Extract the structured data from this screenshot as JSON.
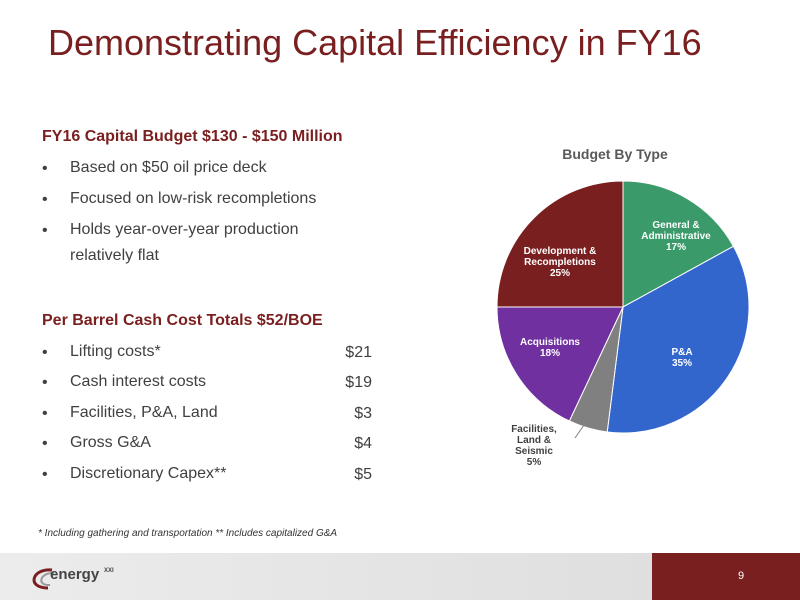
{
  "title": "Demonstrating Capital Efficiency in FY16",
  "section1": {
    "heading": "FY16 Capital Budget $130 - $150 Million",
    "bullets": [
      "Based on $50 oil price deck",
      "Focused on low-risk recompletions",
      "Holds year-over-year production relatively flat"
    ]
  },
  "section2": {
    "heading": "Per Barrel Cash Cost Totals $52/BOE",
    "items": [
      {
        "label": "Lifting costs*",
        "value": "$21"
      },
      {
        "label": "Cash interest costs",
        "value": "$19"
      },
      {
        "label": "Facilities, P&A, Land",
        "value": "$3"
      },
      {
        "label": "Gross G&A",
        "value": "$4"
      },
      {
        "label": "Discretionary Capex**",
        "value": "$5"
      }
    ]
  },
  "bullet_char": "•",
  "footnote": "* Including gathering and transportation  ** Includes capitalized G&A",
  "page_number": "9",
  "logo": {
    "text": "energy",
    "sup": "XXI"
  },
  "chart_data": {
    "type": "pie",
    "title": "Budget By Type",
    "slices": [
      {
        "label": "General & Administrative",
        "value": 17,
        "pct": "17%",
        "color": "#3a9a6a"
      },
      {
        "label": "P&A",
        "value": 35,
        "pct": "35%",
        "color": "#3366cc"
      },
      {
        "label": "Facilities, Land & Seismic",
        "value": 5,
        "pct": "5%",
        "color": "#808080"
      },
      {
        "label": "Acquisitions",
        "value": 18,
        "pct": "18%",
        "color": "#7030a0"
      },
      {
        "label": "Development & Recompletions",
        "value": 25,
        "pct": "25%",
        "color": "#7a1f1f"
      }
    ]
  }
}
